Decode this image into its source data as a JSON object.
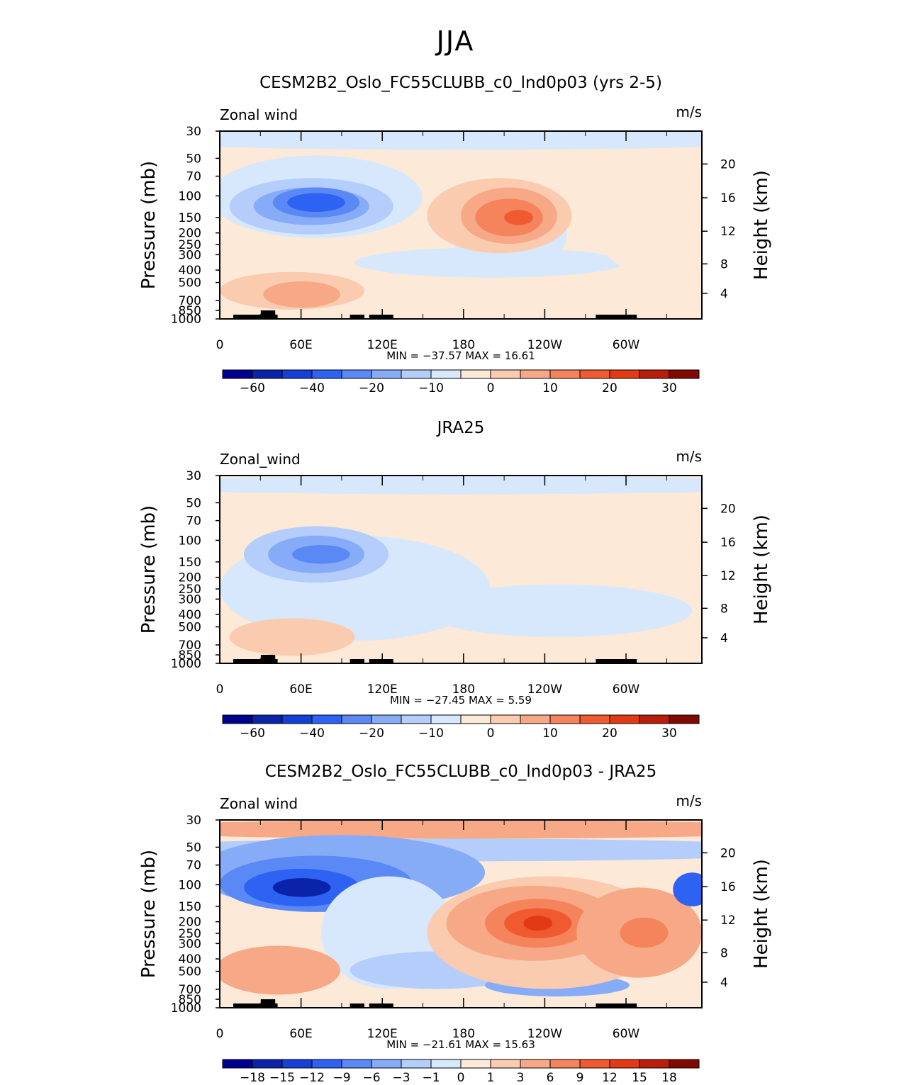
{
  "page": {
    "title": "JJA"
  },
  "panels": [
    {
      "title": "CESM2B2_Oslo_FC55CLUBB_c0_lnd0p03 (yrs 2-5)",
      "left_label": "Zonal wind",
      "right_label": "m/s",
      "stats": "MIN = −37.57   MAX =  16.61",
      "colorbar_labels": [
        "−60",
        "−40",
        "−20",
        "−10",
        "0",
        "10",
        "20",
        "30"
      ],
      "palette": "full"
    },
    {
      "title": "JRA25",
      "left_label": "Zonal_wind",
      "right_label": "m/s",
      "stats": "MIN = −27.45   MAX =   5.59",
      "colorbar_labels": [
        "−60",
        "−40",
        "−20",
        "−10",
        "0",
        "10",
        "20",
        "30"
      ],
      "palette": "full"
    },
    {
      "title": "CESM2B2_Oslo_FC55CLUBB_c0_lnd0p03 - JRA25",
      "left_label": "Zonal wind",
      "right_label": "m/s",
      "stats": "MIN = −21.61   MAX =  15.63",
      "colorbar_labels": [
        "−18",
        "−15",
        "−12",
        "−9",
        "−6",
        "−3",
        "−1",
        "0",
        "1",
        "3",
        "6",
        "9",
        "12",
        "15",
        "18"
      ],
      "palette": "diff"
    }
  ],
  "chart_data": [
    {
      "type": "heatmap",
      "title": "CESM2B2_Oslo_FC55CLUBB_c0_lnd0p03 (yrs 2-5)",
      "variable": "Zonal wind",
      "units": "m/s",
      "xlabel": "",
      "ylabel": "Pressure (mb)",
      "ylabel_right": "Height (km)",
      "x_ticks": [
        "0",
        "60E",
        "120E",
        "180",
        "120W",
        "60W"
      ],
      "y_ticks": [
        "30",
        "50",
        "70",
        "100",
        "150",
        "200",
        "250",
        "300",
        "400",
        "500",
        "700",
        "850",
        "1000"
      ],
      "y_right_ticks": [
        "20",
        "16",
        "12",
        "8",
        "4"
      ],
      "min": -37.57,
      "max": 16.61,
      "contour_levels": [
        -70,
        -60,
        -50,
        -40,
        -30,
        -20,
        -15,
        -10,
        -5,
        0,
        5,
        10,
        15,
        20,
        25,
        30,
        35
      ],
      "colorbar_labels": [
        "-60",
        "-40",
        "-20",
        "-10",
        "0",
        "10",
        "20",
        "30"
      ]
    },
    {
      "type": "heatmap",
      "title": "JRA25",
      "variable": "Zonal_wind",
      "units": "m/s",
      "xlabel": "",
      "ylabel": "Pressure (mb)",
      "ylabel_right": "Height (km)",
      "x_ticks": [
        "0",
        "60E",
        "120E",
        "180",
        "120W",
        "60W"
      ],
      "y_ticks": [
        "30",
        "50",
        "70",
        "100",
        "150",
        "200",
        "250",
        "300",
        "400",
        "500",
        "700",
        "850",
        "1000"
      ],
      "y_right_ticks": [
        "20",
        "16",
        "12",
        "8",
        "4"
      ],
      "min": -27.45,
      "max": 5.59,
      "contour_levels": [
        -70,
        -60,
        -50,
        -40,
        -30,
        -20,
        -15,
        -10,
        -5,
        0,
        5,
        10,
        15,
        20,
        25,
        30,
        35
      ],
      "colorbar_labels": [
        "-60",
        "-40",
        "-20",
        "-10",
        "0",
        "10",
        "20",
        "30"
      ]
    },
    {
      "type": "heatmap",
      "title": "CESM2B2_Oslo_FC55CLUBB_c0_lnd0p03 - JRA25",
      "variable": "Zonal wind",
      "units": "m/s",
      "xlabel": "",
      "ylabel": "Pressure (mb)",
      "ylabel_right": "Height (km)",
      "x_ticks": [
        "0",
        "60E",
        "120E",
        "180",
        "120W",
        "60W"
      ],
      "y_ticks": [
        "30",
        "50",
        "70",
        "100",
        "150",
        "200",
        "250",
        "300",
        "400",
        "500",
        "700",
        "850",
        "1000"
      ],
      "y_right_ticks": [
        "20",
        "16",
        "12",
        "8",
        "4"
      ],
      "min": -21.61,
      "max": 15.63,
      "contour_levels": [
        -21,
        -18,
        -15,
        -12,
        -9,
        -6,
        -3,
        -1,
        0,
        1,
        3,
        6,
        9,
        12,
        15,
        18,
        21
      ],
      "colorbar_labels": [
        "-18",
        "-15",
        "-12",
        "-9",
        "-6",
        "-3",
        "-1",
        "0",
        "1",
        "3",
        "6",
        "9",
        "12",
        "15",
        "18"
      ]
    }
  ],
  "axes": {
    "x_ticks": [
      "0",
      "60E",
      "120E",
      "180",
      "120W",
      "60W"
    ],
    "y_ticks": [
      "30",
      "50",
      "70",
      "100",
      "150",
      "200",
      "250",
      "300",
      "400",
      "500",
      "700",
      "850",
      "1000"
    ],
    "y_right_ticks": [
      "20",
      "16",
      "12",
      "8",
      "4"
    ],
    "ylabel": "Pressure (mb)",
    "ylabel_right": "Height (km)"
  },
  "palette": [
    "#00008e",
    "#0a23a8",
    "#1540d8",
    "#2e62f2",
    "#5a89f5",
    "#86acf7",
    "#b4cdfa",
    "#d7e8fd",
    "#fde9d7",
    "#fbcbb0",
    "#f7a886",
    "#f5835c",
    "#f05a30",
    "#e23a13",
    "#b91e0a",
    "#810a00"
  ],
  "colors": {
    "topography": "#000000",
    "axes": "#000000",
    "background": "#ffffff"
  }
}
